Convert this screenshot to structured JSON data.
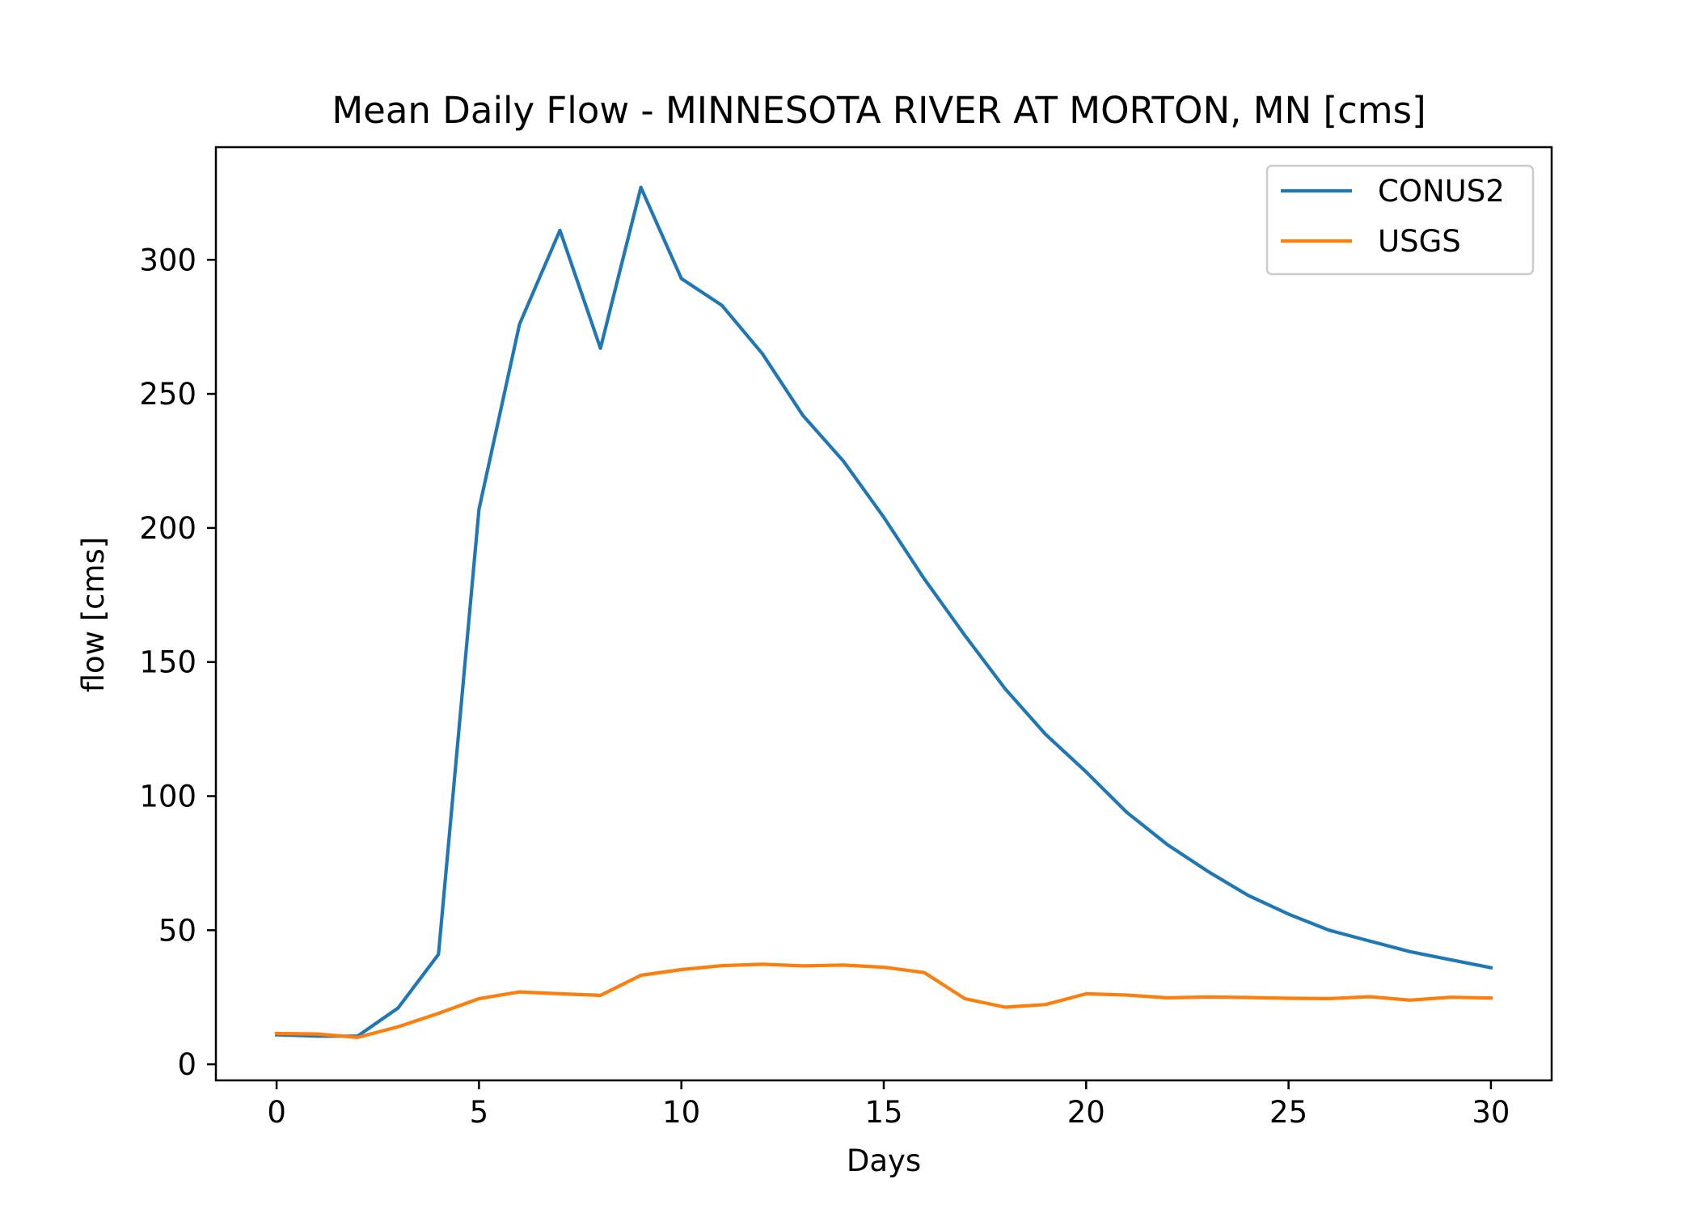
{
  "chart_data": {
    "type": "line",
    "title": "Mean Daily Flow - MINNESOTA RIVER AT MORTON, MN [cms]",
    "xlabel": "Days",
    "ylabel": "flow [cms]",
    "xlim": [
      -1.5,
      31.5
    ],
    "ylim": [
      -6,
      342
    ],
    "x_ticks": [
      0,
      5,
      10,
      15,
      20,
      25,
      30
    ],
    "y_ticks": [
      0,
      50,
      100,
      150,
      200,
      250,
      300
    ],
    "grid": false,
    "legend_position": "top-right",
    "x": [
      0,
      1,
      2,
      3,
      4,
      5,
      6,
      7,
      8,
      9,
      10,
      11,
      12,
      13,
      14,
      15,
      16,
      17,
      18,
      19,
      20,
      21,
      22,
      23,
      24,
      25,
      26,
      27,
      28,
      29,
      30
    ],
    "series": [
      {
        "name": "CONUS2",
        "color": "#1f77b4",
        "values": [
          11,
          10.5,
          10.5,
          21,
          41,
          207,
          276,
          311,
          267,
          327,
          293,
          283,
          265,
          242,
          225,
          204,
          181,
          160,
          140,
          123,
          109,
          94,
          82,
          72,
          63,
          56,
          50,
          46,
          42,
          39,
          36
        ]
      },
      {
        "name": "USGS",
        "color": "#ff7f0e",
        "values": [
          11.5,
          11.3,
          10,
          14,
          19,
          24.5,
          27,
          26.3,
          25.7,
          33.2,
          35.3,
          36.8,
          37.3,
          36.7,
          37,
          36.2,
          34.2,
          24.5,
          21.3,
          22.3,
          26.3,
          25.8,
          24.8,
          25.1,
          24.9,
          24.6,
          24.5,
          25.2,
          23.9,
          25,
          24.7
        ]
      }
    ]
  }
}
